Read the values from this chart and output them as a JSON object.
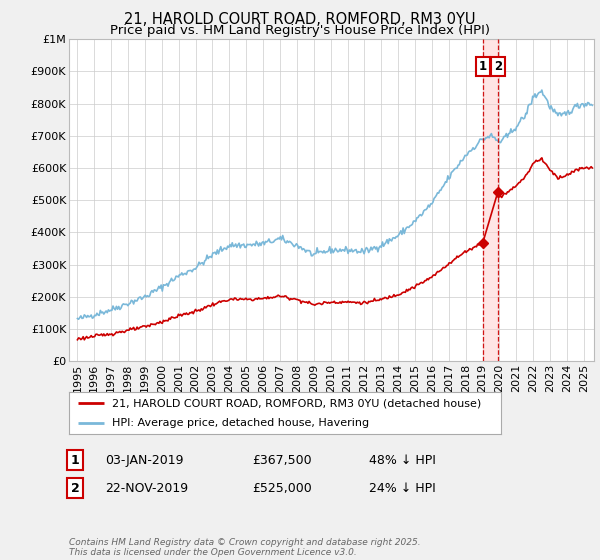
{
  "title": "21, HAROLD COURT ROAD, ROMFORD, RM3 0YU",
  "subtitle": "Price paid vs. HM Land Registry's House Price Index (HPI)",
  "ylim": [
    0,
    1000000
  ],
  "xlim_start": 1994.5,
  "xlim_end": 2025.6,
  "hpi_color": "#7ab8d9",
  "price_color": "#cc0000",
  "vline_color": "#cc0000",
  "shade_color": "#ffcccc",
  "vline_x1": 2019.01,
  "vline_x2": 2019.9,
  "point1_x": 2019.01,
  "point1_y": 367500,
  "point2_x": 2019.9,
  "point2_y": 525000,
  "legend_label1": "21, HAROLD COURT ROAD, ROMFORD, RM3 0YU (detached house)",
  "legend_label2": "HPI: Average price, detached house, Havering",
  "annotation1_num": "1",
  "annotation1_date": "03-JAN-2019",
  "annotation1_price": "£367,500",
  "annotation1_hpi": "48% ↓ HPI",
  "annotation2_num": "2",
  "annotation2_date": "22-NOV-2019",
  "annotation2_price": "£525,000",
  "annotation2_hpi": "24% ↓ HPI",
  "footer": "Contains HM Land Registry data © Crown copyright and database right 2025.\nThis data is licensed under the Open Government Licence v3.0.",
  "bg_color": "#f0f0f0",
  "plot_bg_color": "#ffffff",
  "grid_color": "#cccccc",
  "title_fontsize": 10.5,
  "subtitle_fontsize": 9.5,
  "tick_fontsize": 8,
  "legend_fontsize": 8,
  "annotation_fontsize": 9
}
